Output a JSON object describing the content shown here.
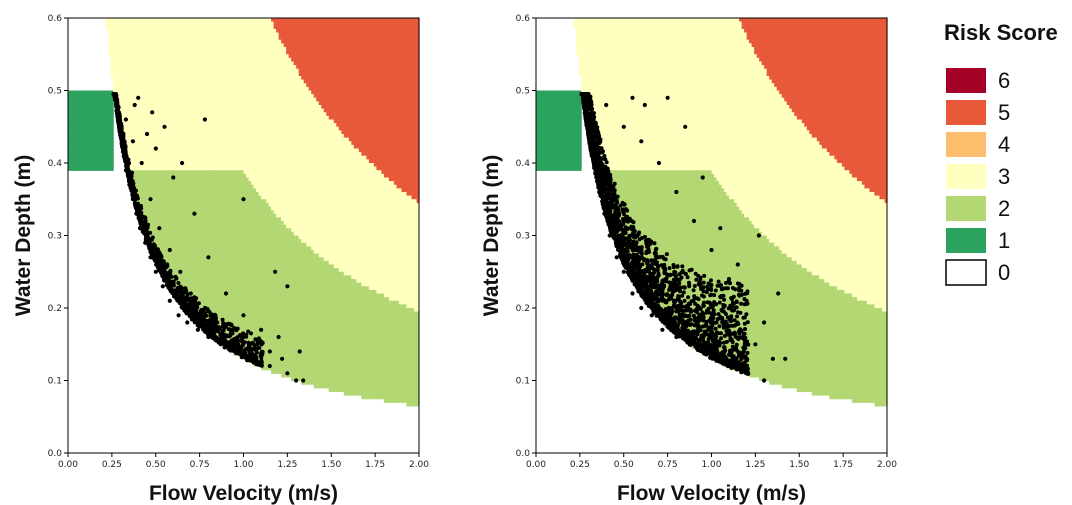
{
  "chart_data": [
    {
      "type": "scatter",
      "title": "",
      "xlabel": "Flow Velocity (m/s)",
      "ylabel": "Water Depth (m)",
      "xlim": [
        0,
        2
      ],
      "ylim": [
        0,
        0.6
      ],
      "xticks": [
        "0.00",
        "0.25",
        "0.50",
        "0.75",
        "1.00",
        "1.25",
        "1.50",
        "1.75",
        "2.00"
      ],
      "yticks": [
        "0.0",
        "0.1",
        "0.2",
        "0.3",
        "0.4",
        "0.5",
        "0.6"
      ],
      "zones": [
        {
          "score": 1,
          "description": "v < 0.25, 0.39 <= d <= 0.50"
        },
        {
          "score": 2,
          "description": "v*d between 0.13 and ~0.39 (below d = 0.39)"
        },
        {
          "score": 3,
          "description": "v*d between 0.13 and ~0.69 (remaining area)"
        },
        {
          "score": 5,
          "description": "v*d >= ~0.69"
        },
        {
          "score": 0,
          "description": "v*d < 0.13"
        }
      ],
      "points": [
        [
          0.27,
          0.49
        ],
        [
          0.29,
          0.47
        ],
        [
          0.3,
          0.45
        ],
        [
          0.31,
          0.43
        ],
        [
          0.32,
          0.41
        ],
        [
          0.33,
          0.39
        ],
        [
          0.35,
          0.37
        ],
        [
          0.37,
          0.35
        ],
        [
          0.39,
          0.33
        ],
        [
          0.41,
          0.31
        ],
        [
          0.44,
          0.29
        ],
        [
          0.47,
          0.27
        ],
        [
          0.5,
          0.25
        ],
        [
          0.54,
          0.23
        ],
        [
          0.58,
          0.21
        ],
        [
          0.63,
          0.19
        ],
        [
          0.68,
          0.18
        ],
        [
          0.74,
          0.17
        ],
        [
          0.8,
          0.16
        ],
        [
          0.87,
          0.15
        ],
        [
          0.95,
          0.14
        ],
        [
          1.05,
          0.13
        ],
        [
          1.15,
          0.12
        ],
        [
          1.25,
          0.11
        ],
        [
          1.3,
          0.1
        ],
        [
          0.33,
          0.46
        ],
        [
          0.37,
          0.43
        ],
        [
          0.42,
          0.4
        ],
        [
          0.47,
          0.35
        ],
        [
          0.52,
          0.31
        ],
        [
          0.58,
          0.28
        ],
        [
          0.64,
          0.25
        ],
        [
          0.7,
          0.22
        ],
        [
          0.78,
          0.2
        ],
        [
          0.85,
          0.18
        ],
        [
          0.93,
          0.17
        ],
        [
          1.0,
          0.16
        ],
        [
          1.08,
          0.15
        ],
        [
          1.15,
          0.14
        ],
        [
          1.22,
          0.13
        ],
        [
          0.45,
          0.44
        ],
        [
          0.6,
          0.38
        ],
        [
          0.72,
          0.33
        ],
        [
          0.8,
          0.27
        ],
        [
          0.9,
          0.22
        ],
        [
          1.0,
          0.19
        ],
        [
          1.1,
          0.17
        ],
        [
          1.2,
          0.16
        ],
        [
          0.4,
          0.49
        ],
        [
          0.48,
          0.47
        ],
        [
          0.55,
          0.45
        ],
        [
          0.65,
          0.4
        ],
        [
          0.78,
          0.46
        ],
        [
          1.0,
          0.35
        ],
        [
          1.18,
          0.25
        ],
        [
          1.25,
          0.23
        ],
        [
          1.32,
          0.14
        ],
        [
          1.34,
          0.1
        ],
        [
          0.38,
          0.48
        ],
        [
          0.5,
          0.42
        ]
      ],
      "point_spread": "narrow"
    },
    {
      "type": "scatter",
      "title": "",
      "xlabel": "Flow Velocity (m/s)",
      "ylabel": "Water Depth (m)",
      "xlim": [
        0,
        2
      ],
      "ylim": [
        0,
        0.6
      ],
      "xticks": [
        "0.00",
        "0.25",
        "0.50",
        "0.75",
        "1.00",
        "1.25",
        "1.50",
        "1.75",
        "2.00"
      ],
      "yticks": [
        "0.0",
        "0.1",
        "0.2",
        "0.3",
        "0.4",
        "0.5",
        "0.6"
      ],
      "zones": [
        {
          "score": 1,
          "description": "v < 0.25, 0.39 <= d <= 0.50"
        },
        {
          "score": 2,
          "description": "v*d between 0.13 and ~0.39 (below d = 0.39)"
        },
        {
          "score": 3,
          "description": "v*d between 0.13 and ~0.69 (remaining area)"
        },
        {
          "score": 5,
          "description": "v*d >= ~0.69"
        },
        {
          "score": 0,
          "description": "v*d < 0.13"
        }
      ],
      "points": [
        [
          0.27,
          0.49
        ],
        [
          0.29,
          0.47
        ],
        [
          0.3,
          0.45
        ],
        [
          0.32,
          0.42
        ],
        [
          0.34,
          0.39
        ],
        [
          0.36,
          0.36
        ],
        [
          0.39,
          0.33
        ],
        [
          0.42,
          0.3
        ],
        [
          0.46,
          0.27
        ],
        [
          0.5,
          0.25
        ],
        [
          0.55,
          0.22
        ],
        [
          0.6,
          0.2
        ],
        [
          0.66,
          0.19
        ],
        [
          0.72,
          0.17
        ],
        [
          0.8,
          0.16
        ],
        [
          0.88,
          0.15
        ],
        [
          0.97,
          0.14
        ],
        [
          1.05,
          0.13
        ],
        [
          1.12,
          0.12
        ],
        [
          0.4,
          0.48
        ],
        [
          0.5,
          0.45
        ],
        [
          0.6,
          0.43
        ],
        [
          0.7,
          0.4
        ],
        [
          0.8,
          0.36
        ],
        [
          0.9,
          0.32
        ],
        [
          1.0,
          0.28
        ],
        [
          1.1,
          0.24
        ],
        [
          1.2,
          0.21
        ],
        [
          1.3,
          0.18
        ],
        [
          1.25,
          0.15
        ],
        [
          1.3,
          0.1
        ],
        [
          1.35,
          0.13
        ],
        [
          1.42,
          0.13
        ],
        [
          1.27,
          0.3
        ],
        [
          1.38,
          0.22
        ],
        [
          1.05,
          0.31
        ],
        [
          0.85,
          0.45
        ],
        [
          0.75,
          0.49
        ],
        [
          0.95,
          0.38
        ],
        [
          1.15,
          0.26
        ],
        [
          0.62,
          0.48
        ],
        [
          0.55,
          0.49
        ]
      ],
      "point_spread": "wide"
    }
  ],
  "legend": {
    "title": "Risk Score",
    "items": [
      {
        "label": "6",
        "color": "#a50026"
      },
      {
        "label": "5",
        "color": "#e8593a"
      },
      {
        "label": "4",
        "color": "#fdbe6e"
      },
      {
        "label": "3",
        "color": "#ffffbf"
      },
      {
        "label": "2",
        "color": "#b3d773"
      },
      {
        "label": "1",
        "color": "#2ca25f"
      },
      {
        "label": "0",
        "color": "#ffffff"
      }
    ]
  },
  "colors": {
    "zone_0": "#ffffff",
    "zone_1": "#2ca25f",
    "zone_2": "#b3d773",
    "zone_3": "#ffffbf",
    "zone_5": "#e8593a",
    "points": "#000000"
  }
}
